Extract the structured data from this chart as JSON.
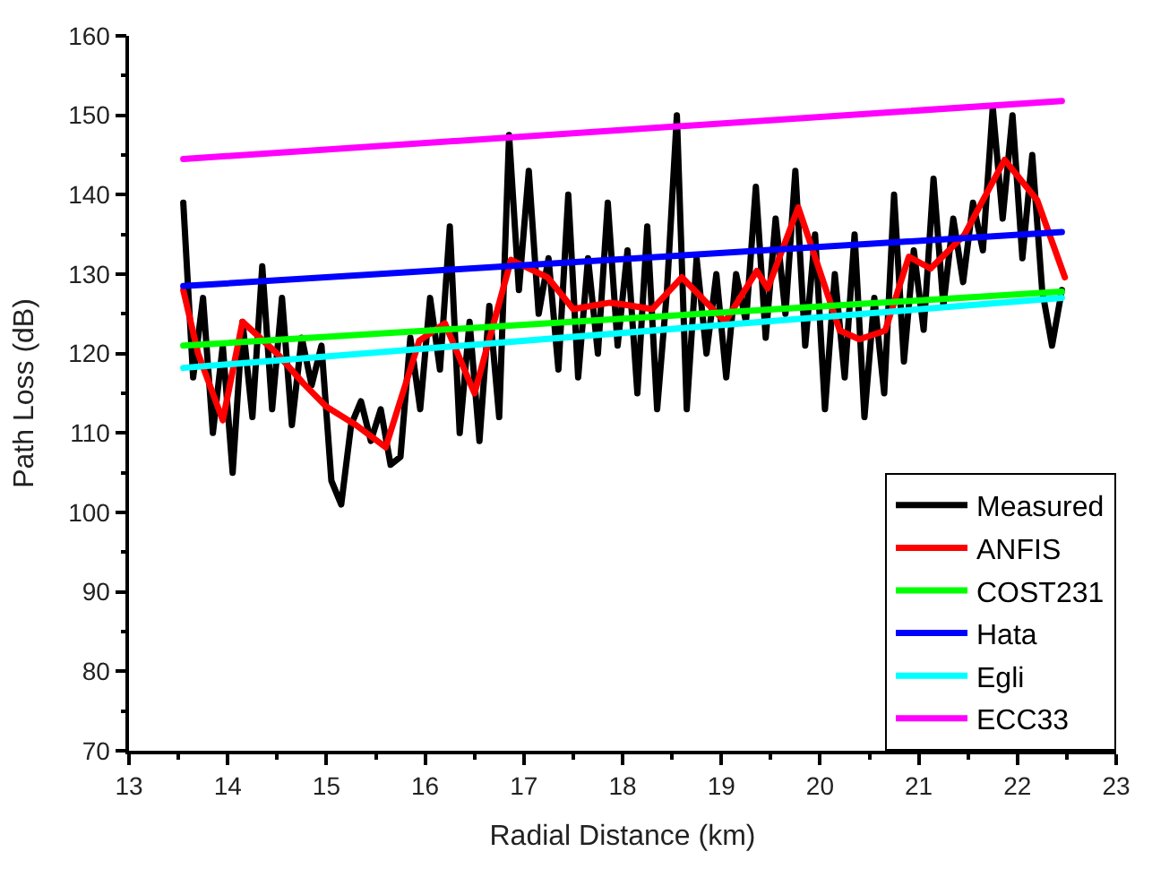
{
  "chart_data": {
    "type": "line",
    "xlabel": "Radial Distance (km)",
    "ylabel": "Path Loss (dB)",
    "xlim": [
      13,
      23
    ],
    "xticks": [
      13,
      14,
      15,
      16,
      17,
      18,
      19,
      20,
      21,
      22,
      23
    ],
    "ylim": [
      70,
      160
    ],
    "yticks": [
      70,
      80,
      90,
      100,
      110,
      120,
      130,
      140,
      150,
      160
    ],
    "legend": "bottom right",
    "marker": "none",
    "line_style": "solid",
    "series": [
      {
        "name": "Measured",
        "color": "#000000",
        "x": [
          13.55,
          13.65,
          13.75,
          13.85,
          13.95,
          14.05,
          14.15,
          14.25,
          14.35,
          14.45,
          14.55,
          14.65,
          14.75,
          14.85,
          14.95,
          15.05,
          15.15,
          15.25,
          15.35,
          15.45,
          15.55,
          15.65,
          15.75,
          15.85,
          15.95,
          16.05,
          16.15,
          16.25,
          16.35,
          16.45,
          16.55,
          16.65,
          16.75,
          16.85,
          16.95,
          17.05,
          17.15,
          17.25,
          17.35,
          17.45,
          17.55,
          17.65,
          17.75,
          17.85,
          17.95,
          18.05,
          18.15,
          18.25,
          18.35,
          18.45,
          18.55,
          18.65,
          18.75,
          18.85,
          18.95,
          19.05,
          19.15,
          19.25,
          19.35,
          19.45,
          19.55,
          19.65,
          19.75,
          19.85,
          19.95,
          20.05,
          20.15,
          20.25,
          20.35,
          20.45,
          20.55,
          20.65,
          20.75,
          20.85,
          20.95,
          21.05,
          21.15,
          21.25,
          21.35,
          21.45,
          21.55,
          21.65,
          21.75,
          21.85,
          21.95,
          22.05,
          22.15,
          22.25,
          22.35,
          22.45
        ],
        "values": [
          139,
          117,
          127,
          110,
          121,
          105,
          124,
          112,
          131,
          113,
          127,
          111,
          122,
          116,
          121,
          104,
          101,
          111,
          114,
          109,
          113,
          106,
          107,
          122,
          113,
          127,
          118,
          136,
          110,
          124,
          109,
          126,
          112,
          147.5,
          128,
          143,
          125,
          132,
          118,
          140,
          117,
          132,
          120,
          139,
          121,
          133,
          115,
          136,
          113,
          128,
          150,
          113,
          132,
          120,
          130,
          117,
          130,
          124,
          141,
          122,
          137,
          125,
          143,
          121,
          135,
          113,
          130,
          117,
          135,
          112,
          127,
          115,
          140,
          119,
          133,
          123,
          142,
          126,
          137,
          129,
          139,
          133,
          151,
          137,
          150,
          132,
          145,
          128,
          121,
          128
        ]
      },
      {
        "name": "ANFIS",
        "color": "#ff0000",
        "x": [
          13.55,
          13.7,
          13.95,
          14.15,
          14.5,
          14.77,
          15.0,
          15.3,
          15.6,
          15.94,
          16.2,
          16.5,
          16.87,
          17.24,
          17.5,
          17.87,
          18.0,
          18.3,
          18.6,
          19.04,
          19.36,
          19.47,
          19.78,
          20.2,
          20.4,
          20.66,
          20.9,
          21.12,
          21.46,
          21.87,
          22.2,
          22.48
        ],
        "values": [
          128,
          120,
          111.6,
          124,
          120,
          116.2,
          113.3,
          111,
          108.2,
          121.6,
          123.8,
          115,
          131.8,
          129.6,
          125.6,
          126.4,
          126.2,
          125.6,
          129.6,
          124,
          130.4,
          128.2,
          138.4,
          122.9,
          121.8,
          122.9,
          132.2,
          130.7,
          134.9,
          144.4,
          139.3,
          129.6
        ]
      },
      {
        "name": "COST231",
        "color": "#00ff00",
        "x": [
          13.55,
          22.45
        ],
        "values": [
          121,
          127.8
        ]
      },
      {
        "name": "Hata",
        "color": "#0000ff",
        "x": [
          13.55,
          22.45
        ],
        "values": [
          128.5,
          135.3
        ]
      },
      {
        "name": "Egli",
        "color": "#00ffff",
        "x": [
          13.55,
          22.45
        ],
        "values": [
          118.2,
          127
        ]
      },
      {
        "name": "ECC33",
        "color": "#ff00ff",
        "x": [
          13.55,
          22.45
        ],
        "values": [
          144.5,
          151.8
        ]
      }
    ]
  }
}
